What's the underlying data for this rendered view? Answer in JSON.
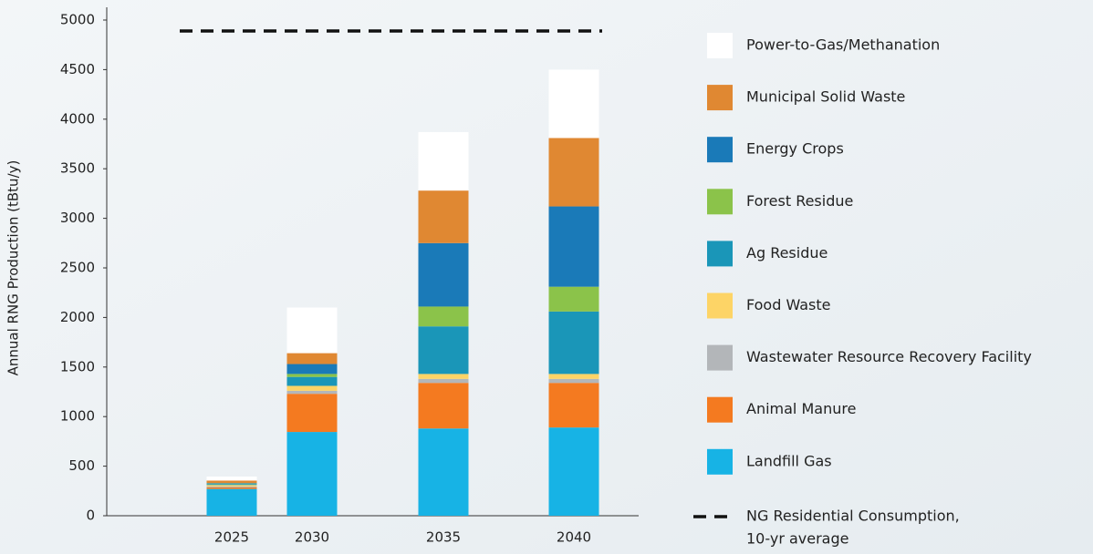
{
  "chart_data": {
    "type": "stacked_bar",
    "y_label": "Annual RNG Production (tBtu/y)",
    "categories": [
      "2025",
      "2030",
      "2035",
      "2040"
    ],
    "ylim": [
      0,
      5000
    ],
    "yticks": [
      0,
      500,
      1000,
      1500,
      2000,
      2500,
      3000,
      3500,
      4000,
      4500,
      5000
    ],
    "series": [
      {
        "name": "Landfill Gas",
        "color": "#17b3e5",
        "values": [
          270,
          845,
          880,
          890
        ]
      },
      {
        "name": "Animal Manure",
        "color": "#f47a20",
        "values": [
          15,
          385,
          460,
          450
        ]
      },
      {
        "name": "Wastewater Resource Recovery Facility",
        "color": "#b3b6b9",
        "values": [
          10,
          30,
          40,
          40
        ]
      },
      {
        "name": "Food Waste",
        "color": "#fdd466",
        "values": [
          15,
          50,
          50,
          50
        ]
      },
      {
        "name": "Ag Residue",
        "color": "#1a96b8",
        "values": [
          10,
          90,
          480,
          630
        ]
      },
      {
        "name": "Forest Residue",
        "color": "#8bc34a",
        "values": [
          5,
          30,
          200,
          250
        ]
      },
      {
        "name": "Energy Crops",
        "color": "#1a7ab8",
        "values": [
          5,
          100,
          640,
          810
        ]
      },
      {
        "name": "Municipal Solid Waste",
        "color": "#e08832",
        "values": [
          25,
          110,
          530,
          690
        ]
      },
      {
        "name": "Power-to-Gas/Methanation",
        "color": "#ffffff",
        "values": [
          40,
          460,
          590,
          690
        ]
      }
    ],
    "reference_line": {
      "lines": [
        "NG Residential Consumption,",
        "10-yr average"
      ],
      "value": 4890,
      "color": "#111111"
    }
  }
}
